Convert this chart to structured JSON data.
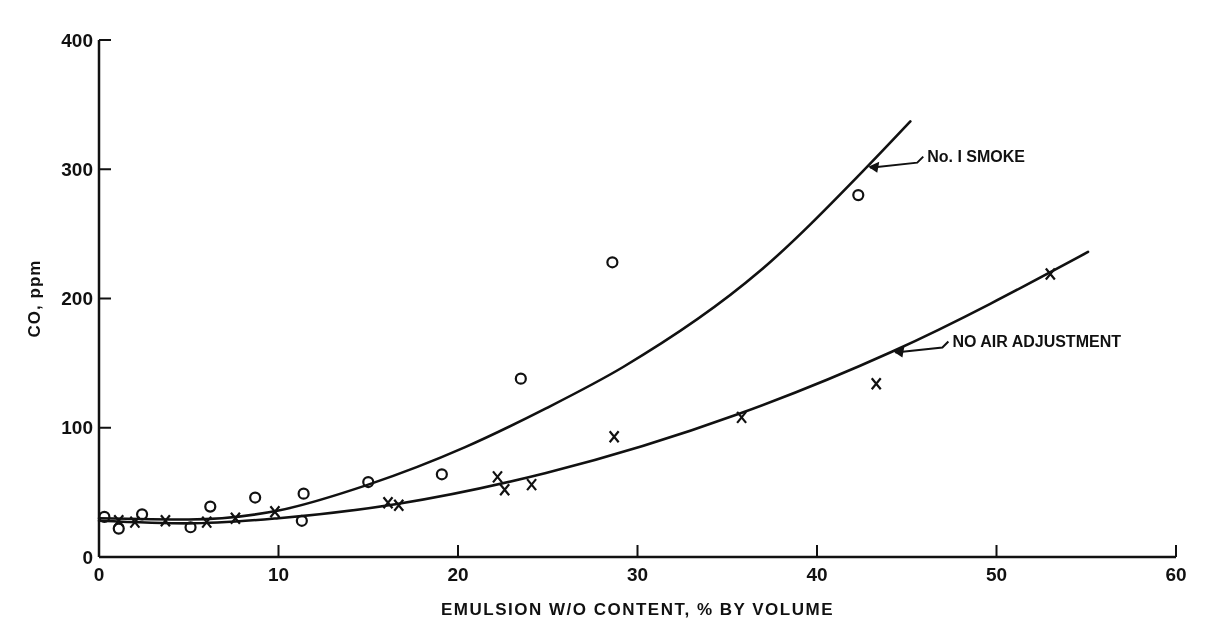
{
  "chart_data": {
    "type": "scatter",
    "xlabel": "EMULSION W/O CONTENT, % BY VOLUME",
    "ylabel": "CO, ppm",
    "xlim": [
      0,
      60
    ],
    "ylim": [
      0,
      400
    ],
    "xticks": [
      0,
      10,
      20,
      30,
      40,
      50,
      60
    ],
    "yticks": [
      0,
      100,
      200,
      300,
      400
    ],
    "grid": false,
    "series": [
      {
        "marker": "circle",
        "color": "#111111",
        "x": [
          0.3,
          1.1,
          2.4,
          5.1,
          6.2,
          8.7,
          11.3,
          11.4,
          15.0,
          19.1,
          23.5,
          28.6,
          42.3
        ],
        "values": [
          31,
          22,
          33,
          23,
          39,
          46,
          28,
          49,
          58,
          64,
          138,
          228,
          280
        ]
      },
      {
        "marker": "cross",
        "color": "#111111",
        "x": [
          1.1,
          2.0,
          3.7,
          6.0,
          7.6,
          9.8,
          16.1,
          16.7,
          22.2,
          22.6,
          24.1,
          28.7,
          35.8,
          43.3,
          53.0
        ],
        "values": [
          28,
          27,
          28,
          27,
          30,
          35,
          42,
          40,
          62,
          52,
          56,
          93,
          108,
          134,
          219
        ]
      },
      {
        "type": "line",
        "marker": "none",
        "line_style": "solid",
        "color": "#111111",
        "x": [
          0,
          5,
          10,
          15,
          20.4,
          24.9,
          29.2,
          36.8,
          42.8,
          45.2
        ],
        "values": [
          30,
          29,
          36,
          56,
          85,
          115,
          147,
          221,
          302,
          337
        ]
      },
      {
        "type": "line",
        "marker": "none",
        "line_style": "solid",
        "color": "#111111",
        "x": [
          0,
          5,
          10,
          16.6,
          24.9,
          35.7,
          44.2,
          55.1
        ],
        "values": [
          28,
          26,
          30,
          41,
          65,
          111,
          159,
          236
        ]
      }
    ],
    "annotations": [
      {
        "text": "No. I SMOKE",
        "x": 42.8,
        "y": 302
      },
      {
        "text": "NO AIR ADJUSTMENT",
        "x": 44.2,
        "y": 159
      }
    ]
  }
}
